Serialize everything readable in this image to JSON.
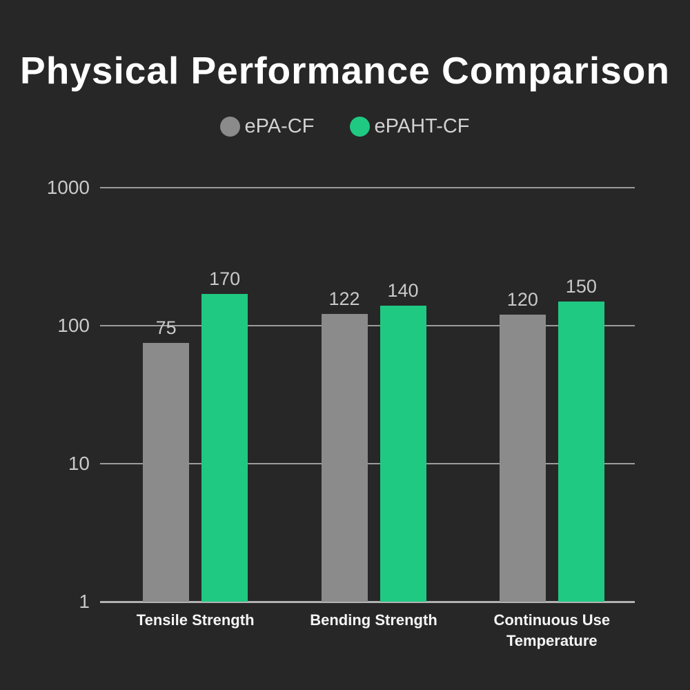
{
  "title": "Physical Performance Comparison",
  "legend": [
    {
      "label": "ePA-CF",
      "color": "#8b8b8b"
    },
    {
      "label": "ePAHT-CF",
      "color": "#1fc982"
    }
  ],
  "colors": {
    "background": "#272727",
    "gridline": "#9c9c9c",
    "baseline": "#b3b3b3",
    "axis_text": "#c9c9c9",
    "value_text": "#c9c9c9",
    "category_text": "#f5f5f5",
    "title_text": "#ffffff",
    "series_gray": "#8b8b8b",
    "series_green": "#1fc982"
  },
  "chart_data": {
    "type": "bar",
    "scale": "log10",
    "title": "Physical Performance Comparison",
    "categories": [
      "Tensile Strength",
      "Bending Strength",
      "Continuous Use Temperature"
    ],
    "series": [
      {
        "name": "ePA-CF",
        "color": "#8b8b8b",
        "values": [
          75,
          122,
          120
        ]
      },
      {
        "name": "ePAHT-CF",
        "color": "#1fc982",
        "values": [
          170,
          140,
          150
        ]
      }
    ],
    "y_ticks": [
      1000,
      100,
      10,
      1
    ],
    "ylim": [
      1,
      1000
    ],
    "xlabel": "",
    "ylabel": "",
    "grid": true,
    "legend_position": "top"
  }
}
